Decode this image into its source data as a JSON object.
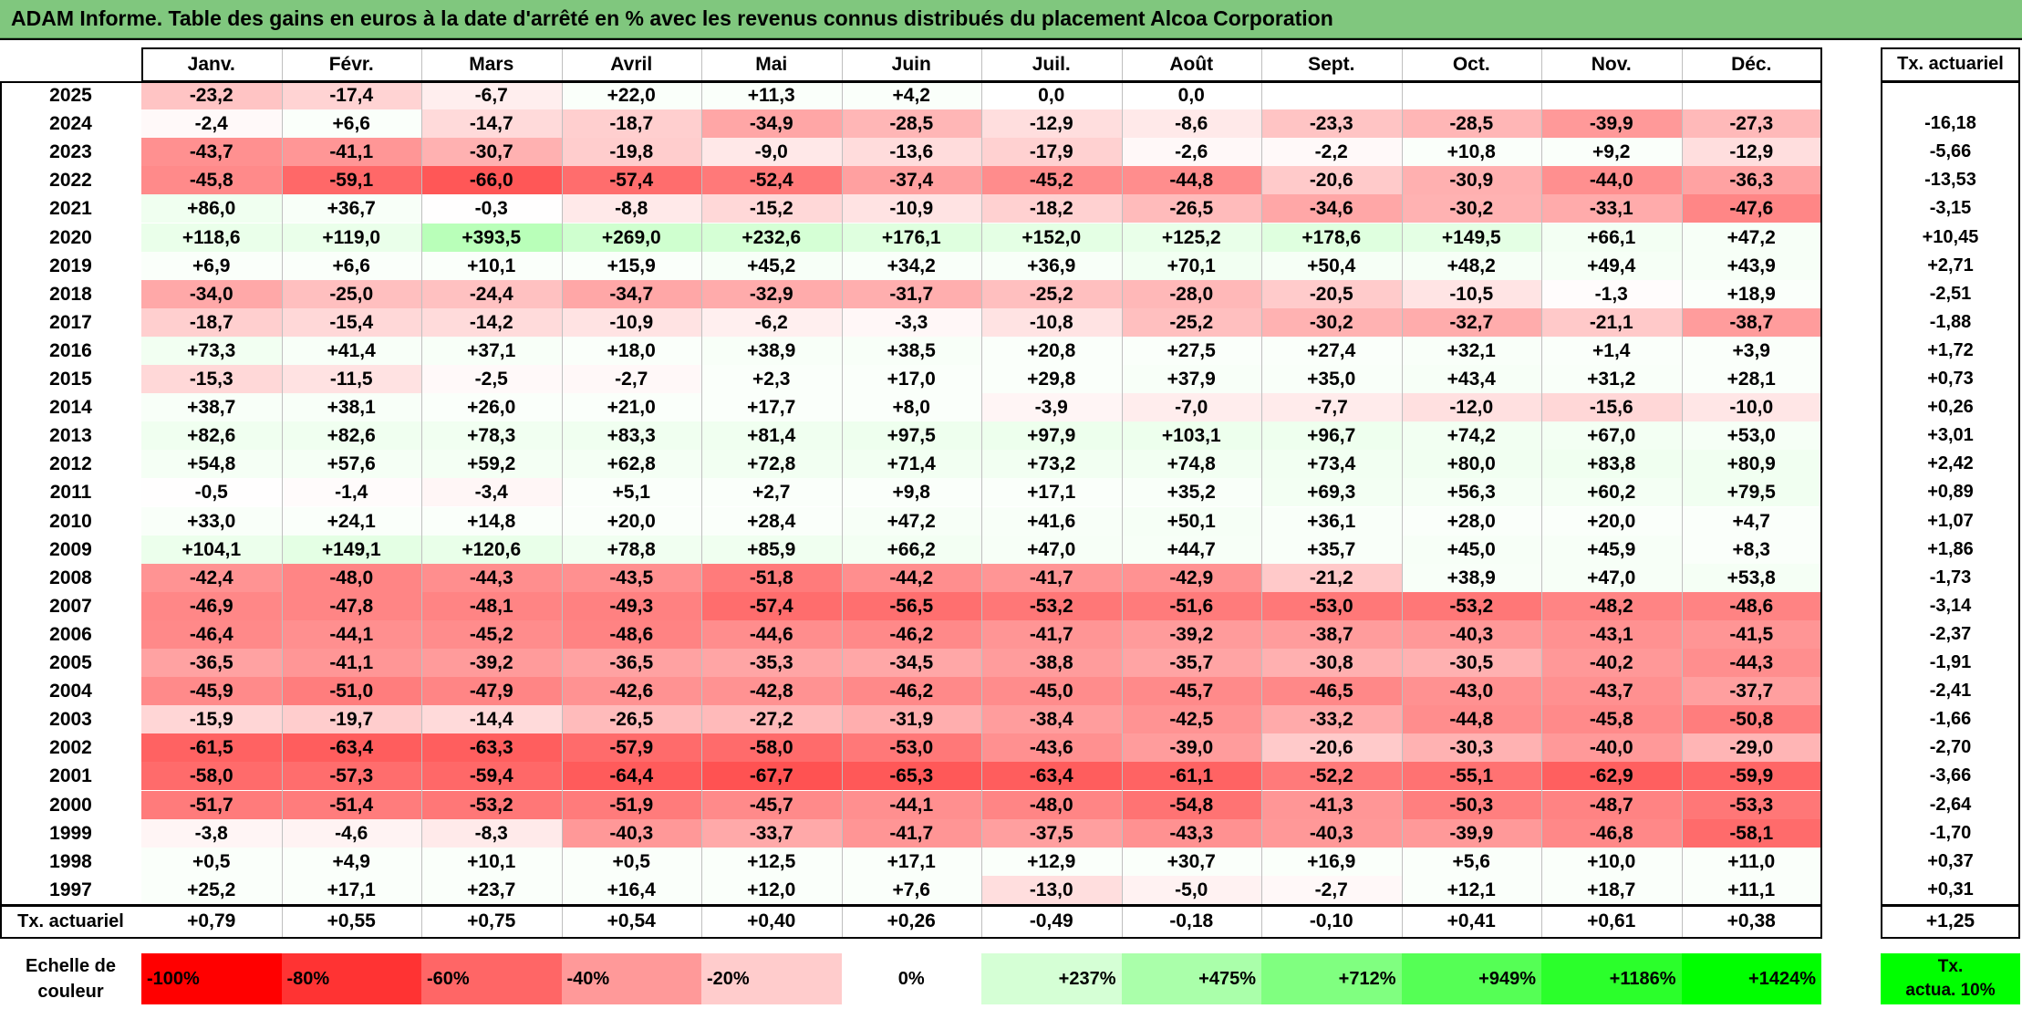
{
  "title": "ADAM Informe. Table des gains en euros à la date d'arrêté en % avec les revenus connus distribués du placement Alcoa Corporation",
  "chart_data": {
    "type": "heatmap",
    "months": [
      "Janv.",
      "Févr.",
      "Mars",
      "Avril",
      "Mai",
      "Juin",
      "Juil.",
      "Août",
      "Sept.",
      "Oct.",
      "Nov.",
      "Déc."
    ],
    "rate_header": "Tx. actuariel",
    "rows": [
      {
        "year": "2025",
        "values": [
          "-23,2",
          "-17,4",
          "-6,7",
          "+22,0",
          "+11,3",
          "+4,2",
          "0,0",
          "0,0",
          "",
          "",
          "",
          ""
        ],
        "rate": ""
      },
      {
        "year": "2024",
        "values": [
          "-2,4",
          "+6,6",
          "-14,7",
          "-18,7",
          "-34,9",
          "-28,5",
          "-12,9",
          "-8,6",
          "-23,3",
          "-28,5",
          "-39,9",
          "-27,3"
        ],
        "rate": "-16,18"
      },
      {
        "year": "2023",
        "values": [
          "-43,7",
          "-41,1",
          "-30,7",
          "-19,8",
          "-9,0",
          "-13,6",
          "-17,9",
          "-2,6",
          "-2,2",
          "+10,8",
          "+9,2",
          "-12,9"
        ],
        "rate": "-5,66"
      },
      {
        "year": "2022",
        "values": [
          "-45,8",
          "-59,1",
          "-66,0",
          "-57,4",
          "-52,4",
          "-37,4",
          "-45,2",
          "-44,8",
          "-20,6",
          "-30,9",
          "-44,0",
          "-36,3"
        ],
        "rate": "-13,53"
      },
      {
        "year": "2021",
        "values": [
          "+86,0",
          "+36,7",
          "-0,3",
          "-8,8",
          "-15,2",
          "-10,9",
          "-18,2",
          "-26,5",
          "-34,6",
          "-30,2",
          "-33,1",
          "-47,6"
        ],
        "rate": "-3,15"
      },
      {
        "year": "2020",
        "values": [
          "+118,6",
          "+119,0",
          "+393,5",
          "+269,0",
          "+232,6",
          "+176,1",
          "+152,0",
          "+125,2",
          "+178,6",
          "+149,5",
          "+66,1",
          "+47,2"
        ],
        "rate": "+10,45"
      },
      {
        "year": "2019",
        "values": [
          "+6,9",
          "+6,6",
          "+10,1",
          "+15,9",
          "+45,2",
          "+34,2",
          "+36,9",
          "+70,1",
          "+50,4",
          "+48,2",
          "+49,4",
          "+43,9"
        ],
        "rate": "+2,71"
      },
      {
        "year": "2018",
        "values": [
          "-34,0",
          "-25,0",
          "-24,4",
          "-34,7",
          "-32,9",
          "-31,7",
          "-25,2",
          "-28,0",
          "-20,5",
          "-10,5",
          "-1,3",
          "+18,9"
        ],
        "rate": "-2,51"
      },
      {
        "year": "2017",
        "values": [
          "-18,7",
          "-15,4",
          "-14,2",
          "-10,9",
          "-6,2",
          "-3,3",
          "-10,8",
          "-25,2",
          "-30,2",
          "-32,7",
          "-21,1",
          "-38,7"
        ],
        "rate": "-1,88"
      },
      {
        "year": "2016",
        "values": [
          "+73,3",
          "+41,4",
          "+37,1",
          "+18,0",
          "+38,9",
          "+38,5",
          "+20,8",
          "+27,5",
          "+27,4",
          "+32,1",
          "+1,4",
          "+3,9"
        ],
        "rate": "+1,72"
      },
      {
        "year": "2015",
        "values": [
          "-15,3",
          "-11,5",
          "-2,5",
          "-2,7",
          "+2,3",
          "+17,0",
          "+29,8",
          "+37,9",
          "+35,0",
          "+43,4",
          "+31,2",
          "+28,1"
        ],
        "rate": "+0,73"
      },
      {
        "year": "2014",
        "values": [
          "+38,7",
          "+38,1",
          "+26,0",
          "+21,0",
          "+17,7",
          "+8,0",
          "-3,9",
          "-7,0",
          "-7,7",
          "-12,0",
          "-15,6",
          "-10,0"
        ],
        "rate": "+0,26"
      },
      {
        "year": "2013",
        "values": [
          "+82,6",
          "+82,6",
          "+78,3",
          "+83,3",
          "+81,4",
          "+97,5",
          "+97,9",
          "+103,1",
          "+96,7",
          "+74,2",
          "+67,0",
          "+53,0"
        ],
        "rate": "+3,01"
      },
      {
        "year": "2012",
        "values": [
          "+54,8",
          "+57,6",
          "+59,2",
          "+62,8",
          "+72,8",
          "+71,4",
          "+73,2",
          "+74,8",
          "+73,4",
          "+80,0",
          "+83,8",
          "+80,9"
        ],
        "rate": "+2,42"
      },
      {
        "year": "2011",
        "values": [
          "-0,5",
          "-1,4",
          "-3,4",
          "+5,1",
          "+2,7",
          "+9,8",
          "+17,1",
          "+35,2",
          "+69,3",
          "+56,3",
          "+60,2",
          "+79,5"
        ],
        "rate": "+0,89"
      },
      {
        "year": "2010",
        "values": [
          "+33,0",
          "+24,1",
          "+14,8",
          "+20,0",
          "+28,4",
          "+47,2",
          "+41,6",
          "+50,1",
          "+36,1",
          "+28,0",
          "+20,0",
          "+4,7"
        ],
        "rate": "+1,07"
      },
      {
        "year": "2009",
        "values": [
          "+104,1",
          "+149,1",
          "+120,6",
          "+78,8",
          "+85,9",
          "+66,2",
          "+47,0",
          "+44,7",
          "+35,7",
          "+45,0",
          "+45,9",
          "+8,3"
        ],
        "rate": "+1,86"
      },
      {
        "year": "2008",
        "values": [
          "-42,4",
          "-48,0",
          "-44,3",
          "-43,5",
          "-51,8",
          "-44,2",
          "-41,7",
          "-42,9",
          "-21,2",
          "+38,9",
          "+47,0",
          "+53,8"
        ],
        "rate": "-1,73"
      },
      {
        "year": "2007",
        "values": [
          "-46,9",
          "-47,8",
          "-48,1",
          "-49,3",
          "-57,4",
          "-56,5",
          "-53,2",
          "-51,6",
          "-53,0",
          "-53,2",
          "-48,2",
          "-48,6"
        ],
        "rate": "-3,14"
      },
      {
        "year": "2006",
        "values": [
          "-46,4",
          "-44,1",
          "-45,2",
          "-48,6",
          "-44,6",
          "-46,2",
          "-41,7",
          "-39,2",
          "-38,7",
          "-40,3",
          "-43,1",
          "-41,5"
        ],
        "rate": "-2,37"
      },
      {
        "year": "2005",
        "values": [
          "-36,5",
          "-41,1",
          "-39,2",
          "-36,5",
          "-35,3",
          "-34,5",
          "-38,8",
          "-35,7",
          "-30,8",
          "-30,5",
          "-40,2",
          "-44,3"
        ],
        "rate": "-1,91"
      },
      {
        "year": "2004",
        "values": [
          "-45,9",
          "-51,0",
          "-47,9",
          "-42,6",
          "-42,8",
          "-46,2",
          "-45,0",
          "-45,7",
          "-46,5",
          "-43,0",
          "-43,7",
          "-37,7"
        ],
        "rate": "-2,41"
      },
      {
        "year": "2003",
        "values": [
          "-15,9",
          "-19,7",
          "-14,4",
          "-26,5",
          "-27,2",
          "-31,9",
          "-38,4",
          "-42,5",
          "-33,2",
          "-44,8",
          "-45,8",
          "-50,8"
        ],
        "rate": "-1,66"
      },
      {
        "year": "2002",
        "values": [
          "-61,5",
          "-63,4",
          "-63,3",
          "-57,9",
          "-58,0",
          "-53,0",
          "-43,6",
          "-39,0",
          "-20,6",
          "-30,3",
          "-40,0",
          "-29,0"
        ],
        "rate": "-2,70"
      },
      {
        "year": "2001",
        "values": [
          "-58,0",
          "-57,3",
          "-59,4",
          "-64,4",
          "-67,7",
          "-65,3",
          "-63,4",
          "-61,1",
          "-52,2",
          "-55,1",
          "-62,9",
          "-59,9"
        ],
        "rate": "-3,66"
      },
      {
        "year": "2000",
        "values": [
          "-51,7",
          "-51,4",
          "-53,2",
          "-51,9",
          "-45,7",
          "-44,1",
          "-48,0",
          "-54,8",
          "-41,3",
          "-50,3",
          "-48,7",
          "-53,3"
        ],
        "rate": "-2,64"
      },
      {
        "year": "1999",
        "values": [
          "-3,8",
          "-4,6",
          "-8,3",
          "-40,3",
          "-33,7",
          "-41,7",
          "-37,5",
          "-43,3",
          "-40,3",
          "-39,9",
          "-46,8",
          "-58,1"
        ],
        "rate": "-1,70"
      },
      {
        "year": "1998",
        "values": [
          "+0,5",
          "+4,9",
          "+10,1",
          "+0,5",
          "+12,5",
          "+17,1",
          "+12,9",
          "+30,7",
          "+16,9",
          "+5,6",
          "+10,0",
          "+11,0"
        ],
        "rate": "+0,37"
      },
      {
        "year": "1997",
        "values": [
          "+25,2",
          "+17,1",
          "+23,7",
          "+16,4",
          "+12,0",
          "+7,6",
          "-13,0",
          "-5,0",
          "-2,7",
          "+12,1",
          "+18,7",
          "+11,1"
        ],
        "rate": "+0,31"
      }
    ],
    "summary": {
      "label": "Tx. actuariel",
      "values": [
        "+0,79",
        "+0,55",
        "+0,75",
        "+0,54",
        "+0,40",
        "+0,26",
        "-0,49",
        "-0,18",
        "-0,10",
        "+0,41",
        "+0,61",
        "+0,38"
      ],
      "rate": "+1,25"
    },
    "scale": {
      "label_line1": "Echelle de",
      "label_line2": "couleur",
      "steps": [
        {
          "label": "-100%",
          "color": "#ff0000"
        },
        {
          "label": "-80%",
          "color": "#ff3333"
        },
        {
          "label": "-60%",
          "color": "#ff6666"
        },
        {
          "label": "-40%",
          "color": "#ff9999"
        },
        {
          "label": "-20%",
          "color": "#ffcccc"
        },
        {
          "label": "0%",
          "color": "#ffffff"
        },
        {
          "label": "+237%",
          "color": "#d5ffd5"
        },
        {
          "label": "+475%",
          "color": "#aaffaa"
        },
        {
          "label": "+712%",
          "color": "#80ff80"
        },
        {
          "label": "+949%",
          "color": "#55ff55"
        },
        {
          "label": "+1186%",
          "color": "#2bff2b"
        },
        {
          "label": "+1424%",
          "color": "#00ff00"
        }
      ],
      "rate_label_line1": "Tx.",
      "rate_label_line2": "actua. 10%",
      "rate_color": "#00ff00"
    }
  }
}
